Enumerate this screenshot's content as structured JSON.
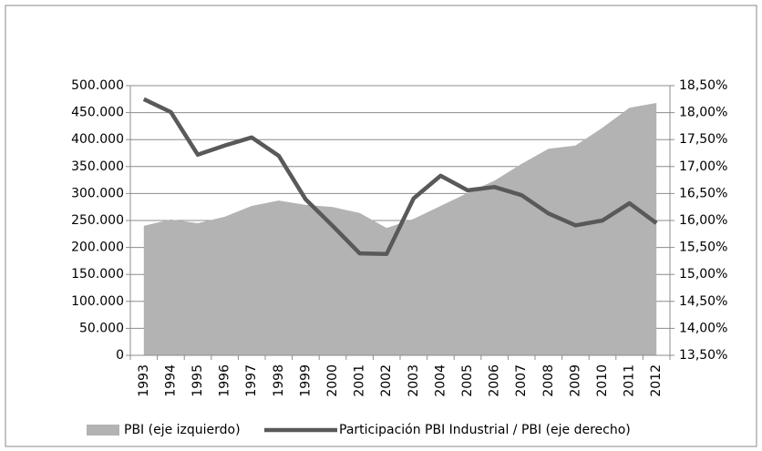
{
  "chart_data": {
    "type": "area-line",
    "categories": [
      "1993",
      "1994",
      "1995",
      "1996",
      "1997",
      "1998",
      "1999",
      "2000",
      "2001",
      "2002",
      "2003",
      "2004",
      "2005",
      "2006",
      "2007",
      "2008",
      "2009",
      "2010",
      "2011",
      "2012"
    ],
    "series": [
      {
        "name": "PBI (eje izquierdo)",
        "type": "area",
        "color": "#b3b3b3",
        "values": [
          240000,
          252000,
          245000,
          257000,
          277000,
          287000,
          279000,
          275000,
          264000,
          236000,
          253000,
          277000,
          301000,
          324000,
          355000,
          383000,
          389000,
          422000,
          459000,
          468000
        ]
      },
      {
        "name": "Participación PBI Industrial / PBI  (eje derecho)",
        "type": "line",
        "color": "#595959",
        "axis": "y2",
        "values": [
          18.25,
          18.01,
          17.22,
          17.39,
          17.54,
          17.2,
          16.39,
          15.9,
          15.39,
          15.38,
          16.41,
          16.83,
          16.56,
          16.62,
          16.47,
          16.13,
          15.91,
          16.0,
          16.32,
          15.95
        ]
      }
    ],
    "ylim": [
      0,
      500000
    ],
    "yticks": [
      0,
      {
        "value": 50000,
        "label": "50.000"
      },
      {
        "value": 100000,
        "label": "100.000"
      },
      {
        "value": 150000,
        "label": "150.000"
      },
      {
        "value": 200000,
        "label": "200.000"
      },
      {
        "value": 250000,
        "label": "250.000"
      },
      {
        "value": 300000,
        "label": "300.000"
      },
      {
        "value": 350000,
        "label": "350.000"
      },
      {
        "value": 400000,
        "label": "400.000"
      },
      {
        "value": 450000,
        "label": "450.000"
      },
      {
        "value": 500000,
        "label": "500.000"
      }
    ],
    "y2lim": [
      13.5,
      18.5
    ],
    "y2ticks": [
      {
        "value": 13.5,
        "label": "13,50%"
      },
      {
        "value": 14,
        "label": "14,00%"
      },
      {
        "value": 14.5,
        "label": "14,50%"
      },
      {
        "value": 15,
        "label": "15,00%"
      },
      {
        "value": 15.5,
        "label": "15,50%"
      },
      {
        "value": 16,
        "label": "16,00%"
      },
      {
        "value": 16.5,
        "label": "16,50%"
      },
      {
        "value": 17,
        "label": "17,00%"
      },
      {
        "value": 17.5,
        "label": "17,50%"
      },
      {
        "value": 18,
        "label": "18,00%"
      },
      {
        "value": 18.5,
        "label": "18,50%"
      }
    ],
    "grid": true
  }
}
